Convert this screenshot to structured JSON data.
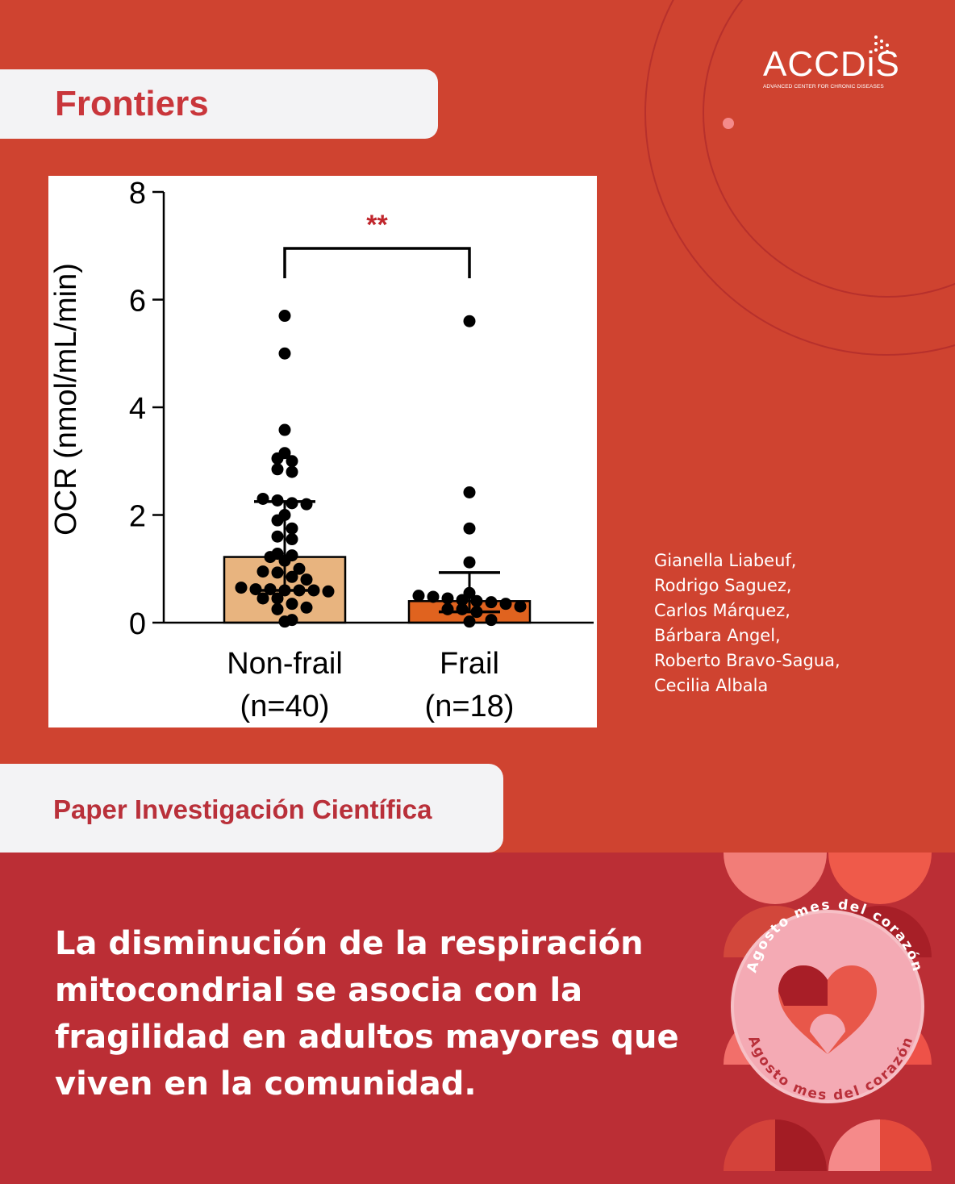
{
  "brand": {
    "journal": "Frontiers",
    "logo_name": "ACCDiS",
    "logo_subtitle": "ADVANCED CENTER FOR CHRONIC DISEASES"
  },
  "chart_data": {
    "type": "bar",
    "title": "",
    "xlabel": "",
    "ylabel": "OCR (nmol/mL/min)",
    "ylim": [
      0,
      8
    ],
    "yticks": [
      "0",
      "2",
      "4",
      "6",
      "8"
    ],
    "categories": [
      {
        "name": "Non-frail",
        "n_label": "(n=40)"
      },
      {
        "name": "Frail",
        "n_label": "(n=18)"
      }
    ],
    "series": [
      {
        "values": [
          1.22,
          0.4
        ],
        "error_upper": [
          2.25,
          0.93
        ],
        "error_lower": [
          0.6,
          0.2
        ],
        "colors": [
          "#e8b47f",
          "#e0631f"
        ],
        "points": [
          [
            5.7,
            5.0,
            3.58,
            3.15,
            3.05,
            3.0,
            2.85,
            2.8,
            2.3,
            2.27,
            2.22,
            2.2,
            2.0,
            1.9,
            1.75,
            1.6,
            1.55,
            1.28,
            1.25,
            1.22,
            1.15,
            1.0,
            0.95,
            0.93,
            0.85,
            0.8,
            0.65,
            0.62,
            0.62,
            0.6,
            0.6,
            0.6,
            0.58,
            0.45,
            0.45,
            0.35,
            0.28,
            0.25,
            0.05,
            0.02
          ],
          [
            5.6,
            2.42,
            1.75,
            1.12,
            0.55,
            0.5,
            0.48,
            0.45,
            0.42,
            0.4,
            0.38,
            0.35,
            0.3,
            0.25,
            0.25,
            0.2,
            0.05,
            0.02
          ]
        ]
      }
    ],
    "annotations": [
      {
        "text": "**",
        "color": "#c0262c",
        "between": [
          "Non-frail",
          "Frail"
        ]
      }
    ],
    "grid": false
  },
  "authors": [
    "Gianella Liabeuf,",
    "Rodrigo Saguez,",
    "Carlos Márquez,",
    "Bárbara Angel,",
    "Roberto Bravo-Sagua,",
    "Cecilia Albala"
  ],
  "section_label": "Paper Investigación Científica",
  "headline_lines": [
    "La disminución de la respiración",
    "mitocondrial se asocia con la",
    "fragilidad en adultos mayores que",
    "viven en la comunidad."
  ],
  "badge": {
    "text_top": "Agosto mes del corazón",
    "text_bottom": "Agosto mes del corazón"
  },
  "colors": {
    "background_top": "#cf4330",
    "background_bottom": "#bb2e35",
    "pill": "#f3f3f5",
    "accent_text": "#c9363b",
    "badge_circle": "#f4aab4"
  }
}
